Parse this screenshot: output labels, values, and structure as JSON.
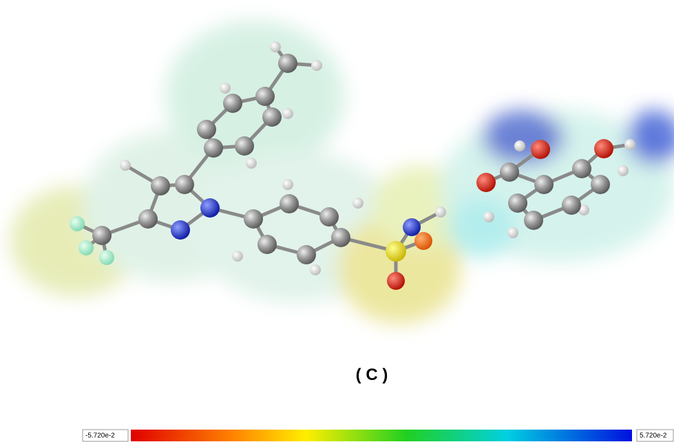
{
  "figure": {
    "label": "( C )",
    "colorbar": {
      "min_label": "-5.720e-2",
      "max_label": "5.720e-2"
    }
  }
}
